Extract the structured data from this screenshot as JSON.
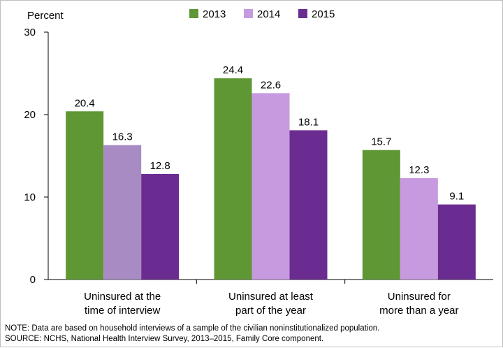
{
  "chart_data": {
    "type": "bar",
    "ylabel": "Percent",
    "ylim": [
      0,
      30
    ],
    "yticks": [
      0,
      10,
      20,
      30
    ],
    "grid": false,
    "legend_position": "top",
    "categories": [
      [
        "Uninsured at the",
        "time of interview"
      ],
      [
        "Uninsured at least",
        "part of the year"
      ],
      [
        "Uninsured for",
        "more than a year"
      ]
    ],
    "series": [
      {
        "name": "2013",
        "color": "#5e9733",
        "values": [
          20.4,
          24.4,
          15.7
        ]
      },
      {
        "name": "2014",
        "color": "#c79ae0",
        "values": [
          16.3,
          22.6,
          12.3
        ]
      },
      {
        "name": "2015",
        "color": "#6b2c91",
        "values": [
          12.8,
          18.1,
          9.1
        ]
      }
    ],
    "highlight": {
      "series": 1,
      "category": 0,
      "color": "#a98bc4"
    }
  },
  "notes": {
    "note": "NOTE: Data are based on household interviews of a sample of the civilian noninstitutionalized population.",
    "source": "SOURCE: NCHS, National Health Interview Survey, 2013–2015, Family Core component."
  }
}
